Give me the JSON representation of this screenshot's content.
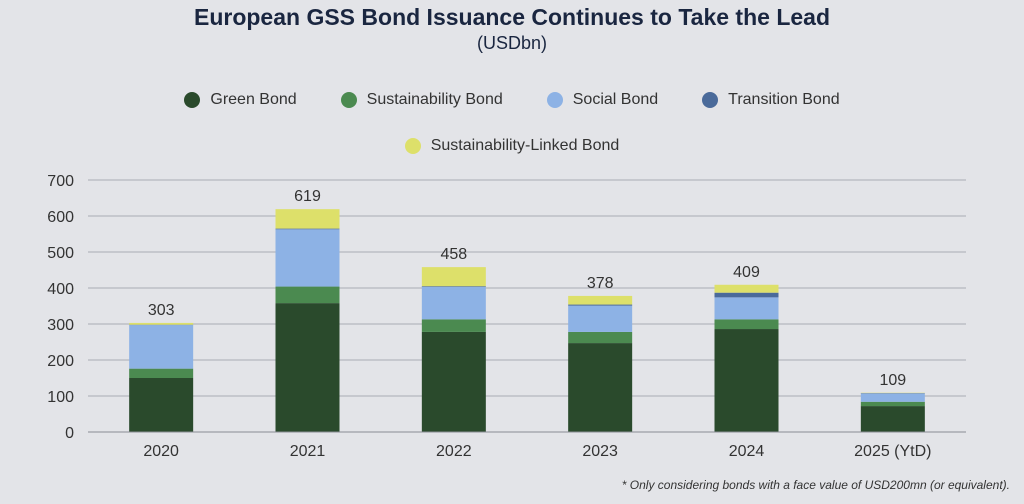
{
  "chart_data": {
    "type": "bar",
    "stacked": true,
    "title": "European GSS Bond Issuance Continues to Take the Lead",
    "subtitle": "(USDbn)",
    "categories": [
      "2020",
      "2021",
      "2022",
      "2023",
      "2024",
      "2025 (YtD)"
    ],
    "series": [
      {
        "name": "Green Bond",
        "color": "#2a4a2c",
        "values": [
          150,
          358,
          278,
          247,
          286,
          72
        ]
      },
      {
        "name": "Sustainability Bond",
        "color": "#4b8a50",
        "values": [
          26,
          46,
          35,
          31,
          27,
          12
        ]
      },
      {
        "name": "Social Bond",
        "color": "#8db2e5",
        "values": [
          121,
          159,
          90,
          73,
          61,
          23
        ]
      },
      {
        "name": "Transition Bond",
        "color": "#4a6a9a",
        "values": [
          1,
          2,
          2,
          3,
          13,
          1
        ]
      },
      {
        "name": "Sustainability-Linked Bond",
        "color": "#dde06a",
        "values": [
          5,
          54,
          53,
          24,
          22,
          1
        ]
      }
    ],
    "totals": [
      "303",
      "619",
      "458",
      "378",
      "409",
      "109"
    ],
    "ylim": [
      0,
      700
    ],
    "yticks": [
      "0",
      "100",
      "200",
      "300",
      "400",
      "500",
      "600",
      "700"
    ],
    "grid": true,
    "legend_position": "top"
  },
  "footnote": "* Only considering bonds with a face value of USD200mn (or equivalent)."
}
